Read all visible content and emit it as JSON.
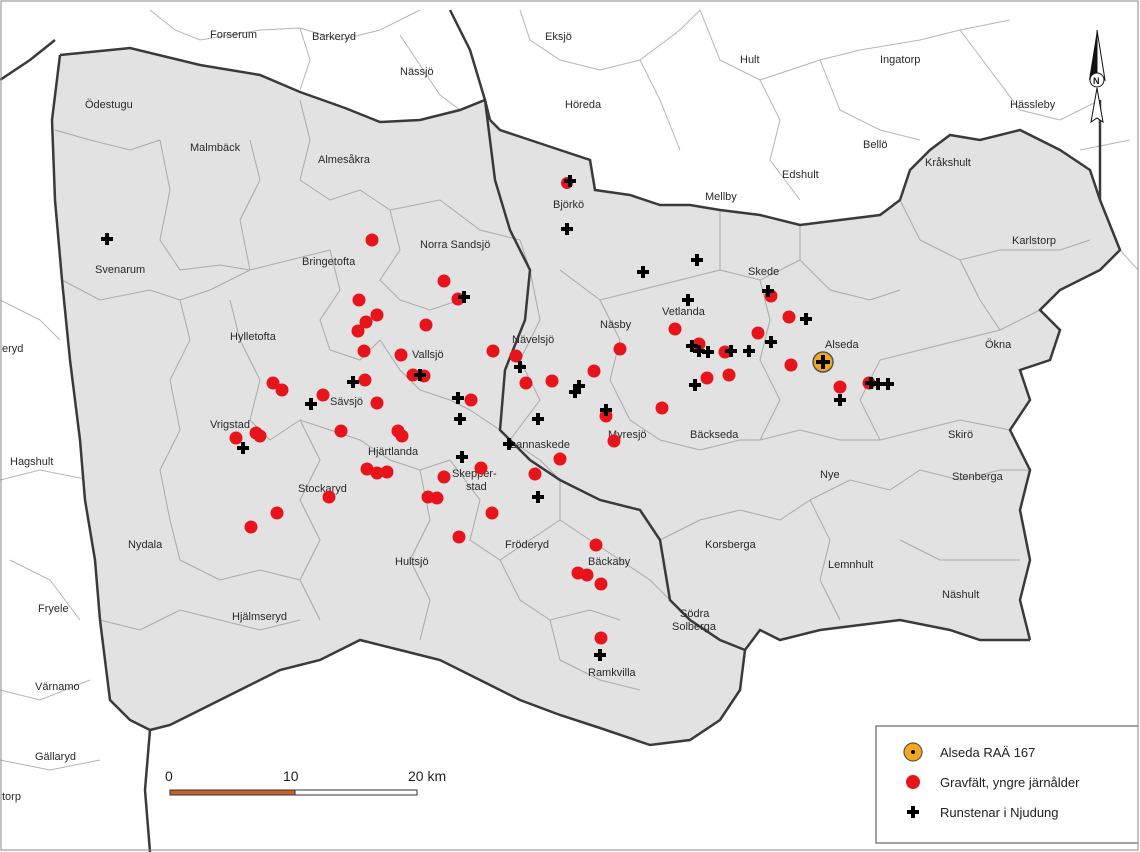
{
  "colors": {
    "region_fill": "#e2e2e2",
    "outer_fill": "#ffffff",
    "parish_line": "#b0b0b0",
    "boundary_line": "#3a3a3a",
    "grave_field": "#e8141c",
    "runestone": "#000000",
    "main_site_fill": "#f2a81d",
    "scale_orange": "#c8602a"
  },
  "places": [
    {
      "name": "Forserum"
    },
    {
      "name": "Barkeryd"
    },
    {
      "name": "Nässjö"
    },
    {
      "name": "Eksjö"
    },
    {
      "name": "Hult"
    },
    {
      "name": "Ingatorp"
    },
    {
      "name": "Hässleby"
    },
    {
      "name": "Ödestugu"
    },
    {
      "name": "Höreda"
    },
    {
      "name": "Malmbäck"
    },
    {
      "name": "Almesåkra"
    },
    {
      "name": "Bellö"
    },
    {
      "name": "Edshult"
    },
    {
      "name": "Mellby"
    },
    {
      "name": "Kråkshult"
    },
    {
      "name": "Björkö"
    },
    {
      "name": "Karlstorp"
    },
    {
      "name": "Bringetofta"
    },
    {
      "name": "Norra Sandsjö"
    },
    {
      "name": "Svenarum"
    },
    {
      "name": "Skede"
    },
    {
      "name": "Vetlanda"
    },
    {
      "name": "Näsby"
    },
    {
      "name": "Hylletofta"
    },
    {
      "name": "Nävelsjö"
    },
    {
      "name": "Vallsjö"
    },
    {
      "name": "Alseda"
    },
    {
      "name": "Ökna"
    },
    {
      "name": "eryd"
    },
    {
      "name": "Sävsjö"
    },
    {
      "name": "Vrigstad"
    },
    {
      "name": "Hjärtlanda"
    },
    {
      "name": "Lannaskede"
    },
    {
      "name": "Myresjö"
    },
    {
      "name": "Bäckseda"
    },
    {
      "name": "Skirö"
    },
    {
      "name": "Hagshult"
    },
    {
      "name": "Skepper-"
    },
    {
      "name": "stad"
    },
    {
      "name": "Stockaryd"
    },
    {
      "name": "Nye"
    },
    {
      "name": "Stenberga"
    },
    {
      "name": "Nydala"
    },
    {
      "name": "Fröderyd"
    },
    {
      "name": "Korsberga"
    },
    {
      "name": "Hultsjö"
    },
    {
      "name": "Bäckaby"
    },
    {
      "name": "Lemnhult"
    },
    {
      "name": "Fryele"
    },
    {
      "name": "Hjälmseryd"
    },
    {
      "name": "Näshult"
    },
    {
      "name": "Södra"
    },
    {
      "name": "Solberga"
    },
    {
      "name": "Värnamo"
    },
    {
      "name": "Ramkvilla"
    },
    {
      "name": "Gällaryd"
    },
    {
      "name": "torp"
    }
  ],
  "scale": {
    "ticks": [
      "0",
      "10",
      "20 km"
    ]
  },
  "north_label": "N",
  "legend": {
    "items": [
      {
        "symbol": "main-site",
        "label": "Alseda RAÄ 167"
      },
      {
        "symbol": "grave-field",
        "label": "Gravfält, yngre järnålder"
      },
      {
        "symbol": "runestone",
        "label": "Runstenar i Njudung"
      }
    ]
  }
}
